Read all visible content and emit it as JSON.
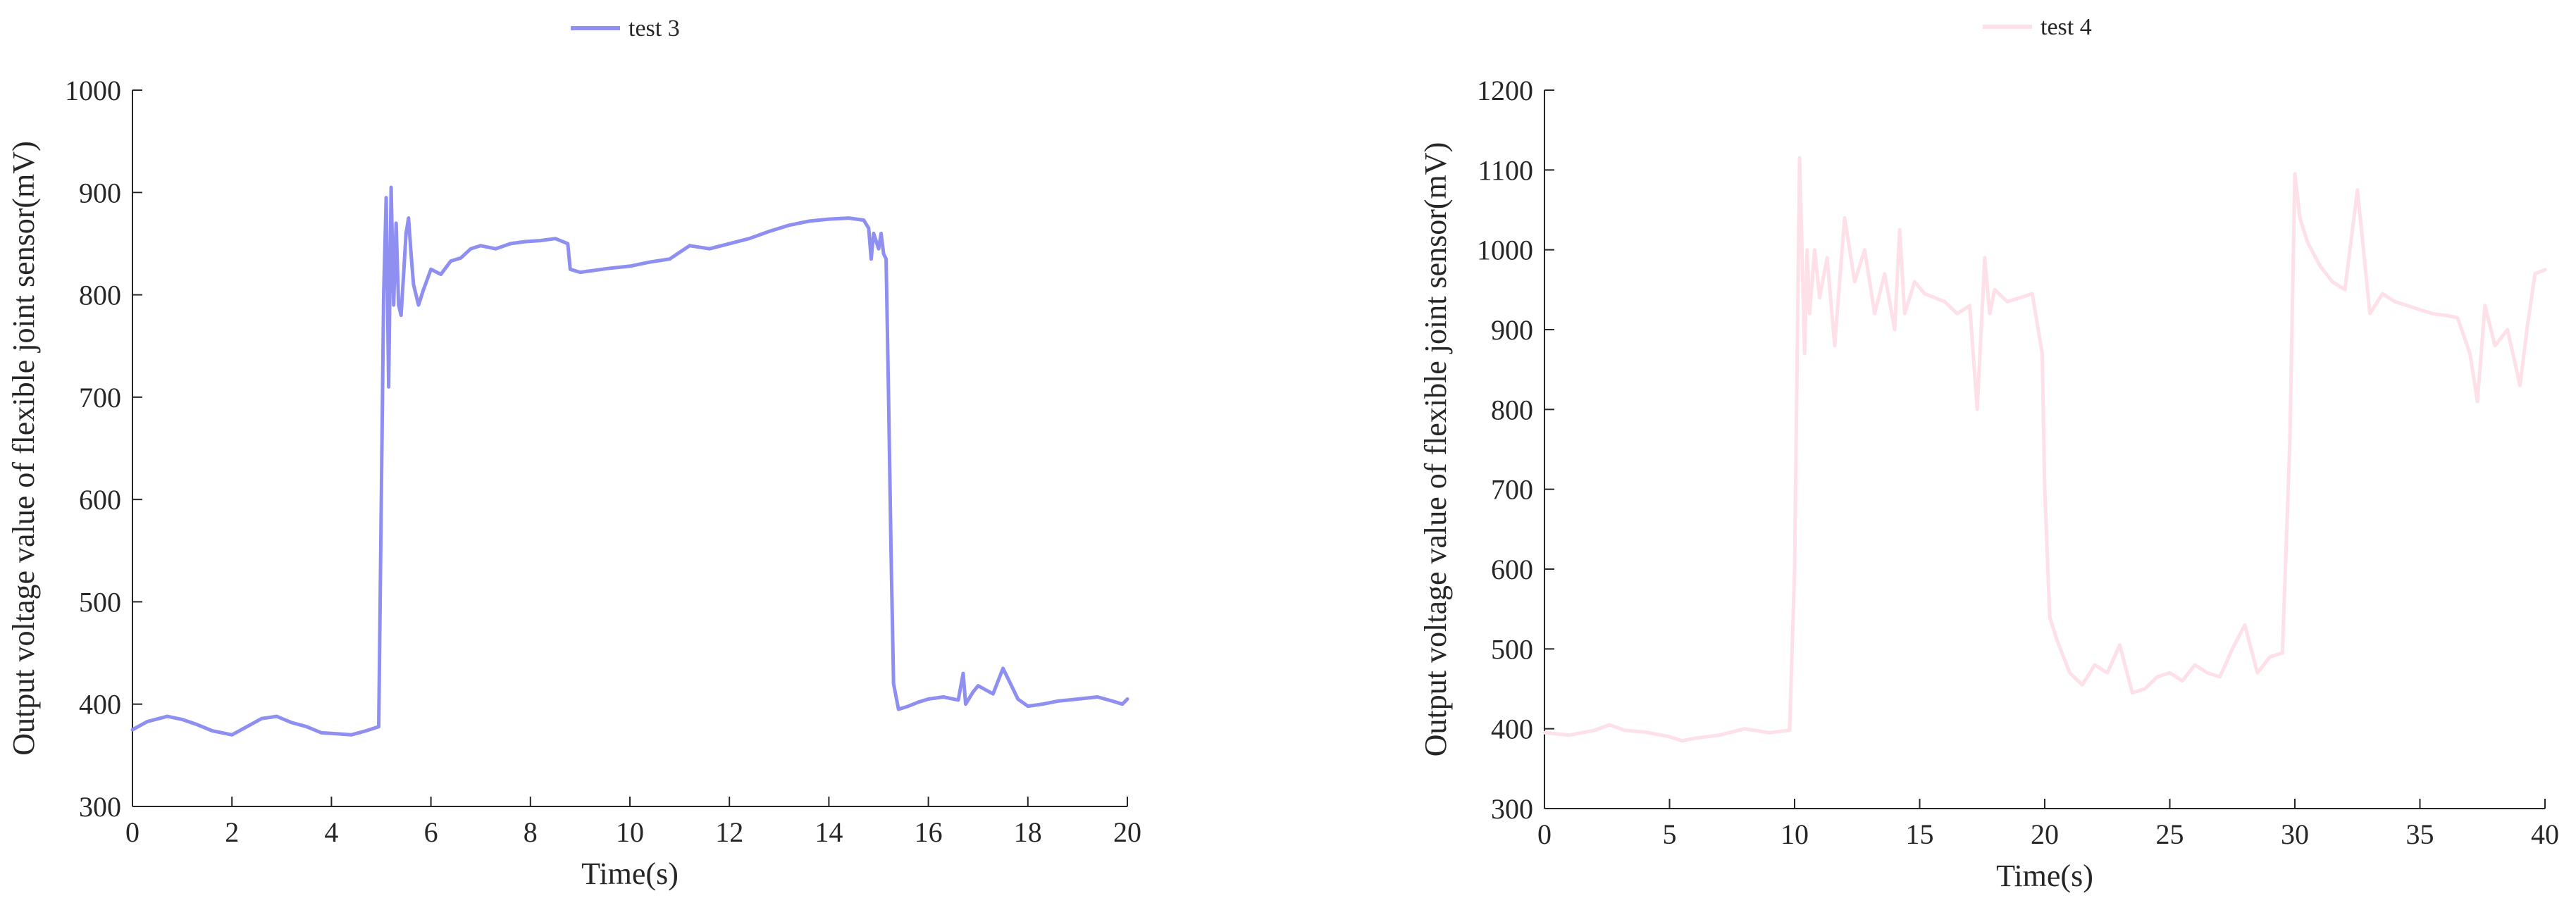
{
  "chart_data": [
    {
      "type": "line",
      "title": "",
      "xlabel": "Time(s)",
      "ylabel": "Output voltage value of flexible joint sensor(mV)",
      "xlim": [
        0,
        20
      ],
      "ylim": [
        300,
        1000
      ],
      "xticks": [
        0,
        2,
        4,
        6,
        8,
        10,
        12,
        14,
        16,
        18,
        20
      ],
      "yticks": [
        300,
        400,
        500,
        600,
        700,
        800,
        900,
        1000
      ],
      "grid": false,
      "legend_position": "top-center",
      "series": [
        {
          "name": "test 3",
          "color": "#8e8ff0",
          "x": [
            0,
            0.3,
            0.7,
            1.0,
            1.3,
            1.6,
            2.0,
            2.3,
            2.6,
            2.9,
            3.2,
            3.5,
            3.8,
            4.1,
            4.4,
            4.7,
            4.95,
            5.05,
            5.1,
            5.15,
            5.2,
            5.25,
            5.3,
            5.35,
            5.4,
            5.45,
            5.5,
            5.55,
            5.6,
            5.65,
            5.75,
            5.85,
            6.0,
            6.2,
            6.4,
            6.6,
            6.8,
            7.0,
            7.3,
            7.6,
            7.9,
            8.2,
            8.5,
            8.75,
            8.8,
            9.0,
            9.3,
            9.6,
            10.0,
            10.4,
            10.8,
            11.2,
            11.6,
            12.0,
            12.4,
            12.8,
            13.2,
            13.6,
            14.0,
            14.4,
            14.7,
            14.8,
            14.85,
            14.9,
            15.0,
            15.05,
            15.1,
            15.15,
            15.2,
            15.25,
            15.3,
            15.4,
            15.6,
            15.8,
            16.0,
            16.3,
            16.6,
            16.7,
            16.75,
            16.9,
            17.0,
            17.3,
            17.5,
            17.6,
            17.8,
            18.0,
            18.3,
            18.6,
            19.0,
            19.4,
            19.7,
            19.9,
            20.0
          ],
          "y": [
            375,
            383,
            388,
            385,
            380,
            374,
            370,
            378,
            386,
            388,
            382,
            378,
            372,
            371,
            370,
            374,
            378,
            800,
            895,
            710,
            905,
            790,
            870,
            790,
            780,
            820,
            860,
            875,
            840,
            810,
            790,
            805,
            825,
            820,
            833,
            836,
            845,
            848,
            845,
            850,
            852,
            853,
            855,
            850,
            825,
            822,
            824,
            826,
            828,
            832,
            835,
            848,
            845,
            850,
            855,
            862,
            868,
            872,
            874,
            875,
            873,
            865,
            835,
            860,
            845,
            860,
            840,
            835,
            700,
            550,
            420,
            395,
            398,
            402,
            405,
            407,
            404,
            430,
            400,
            412,
            418,
            410,
            435,
            425,
            405,
            398,
            400,
            403,
            405,
            407,
            403,
            400,
            405
          ]
        }
      ]
    },
    {
      "type": "line",
      "title": "",
      "xlabel": "Time(s)",
      "ylabel": "Output voltage value of flexible joint sensor(mV)",
      "xlim": [
        0,
        40
      ],
      "ylim": [
        300,
        1200
      ],
      "xticks": [
        0,
        5,
        10,
        15,
        20,
        25,
        30,
        35,
        40
      ],
      "yticks": [
        300,
        400,
        500,
        600,
        700,
        800,
        900,
        1000,
        1100,
        1200
      ],
      "grid": false,
      "legend_position": "top-center",
      "series": [
        {
          "name": "test 4",
          "color": "#fde0e8",
          "x": [
            0,
            1,
            2,
            2.6,
            3.2,
            4,
            5,
            5.5,
            6,
            7,
            8,
            9,
            9.8,
            10.0,
            10.2,
            10.4,
            10.5,
            10.6,
            10.8,
            11.0,
            11.3,
            11.6,
            12.0,
            12.4,
            12.8,
            13.2,
            13.6,
            14.0,
            14.2,
            14.4,
            14.8,
            15.2,
            15.6,
            16.0,
            16.5,
            17.0,
            17.3,
            17.6,
            17.8,
            18.0,
            18.5,
            19.0,
            19.5,
            19.9,
            20.0,
            20.2,
            20.5,
            21.0,
            21.5,
            22.0,
            22.5,
            23.0,
            23.5,
            24.0,
            24.5,
            25.0,
            25.5,
            26.0,
            26.5,
            27.0,
            27.5,
            28.0,
            28.5,
            29.0,
            29.5,
            29.8,
            30.0,
            30.2,
            30.5,
            31.0,
            31.5,
            32.0,
            32.5,
            33.0,
            33.5,
            34.0,
            34.5,
            35.0,
            35.5,
            36.0,
            36.5,
            37.0,
            37.3,
            37.6,
            38.0,
            38.5,
            39.0,
            39.3,
            39.6,
            40.0
          ],
          "y": [
            395,
            392,
            398,
            405,
            398,
            396,
            390,
            385,
            388,
            392,
            400,
            395,
            398,
            600,
            1115,
            870,
            1000,
            920,
            1000,
            940,
            990,
            880,
            1040,
            960,
            1000,
            920,
            970,
            900,
            1025,
            920,
            960,
            945,
            940,
            935,
            920,
            930,
            800,
            990,
            920,
            950,
            935,
            940,
            945,
            870,
            700,
            540,
            510,
            470,
            455,
            480,
            470,
            505,
            445,
            450,
            465,
            470,
            460,
            480,
            470,
            465,
            500,
            530,
            470,
            490,
            495,
            760,
            1095,
            1040,
            1010,
            980,
            960,
            950,
            1075,
            920,
            945,
            935,
            930,
            925,
            920,
            918,
            915,
            870,
            810,
            930,
            880,
            900,
            830,
            905,
            970,
            975
          ]
        }
      ]
    }
  ]
}
